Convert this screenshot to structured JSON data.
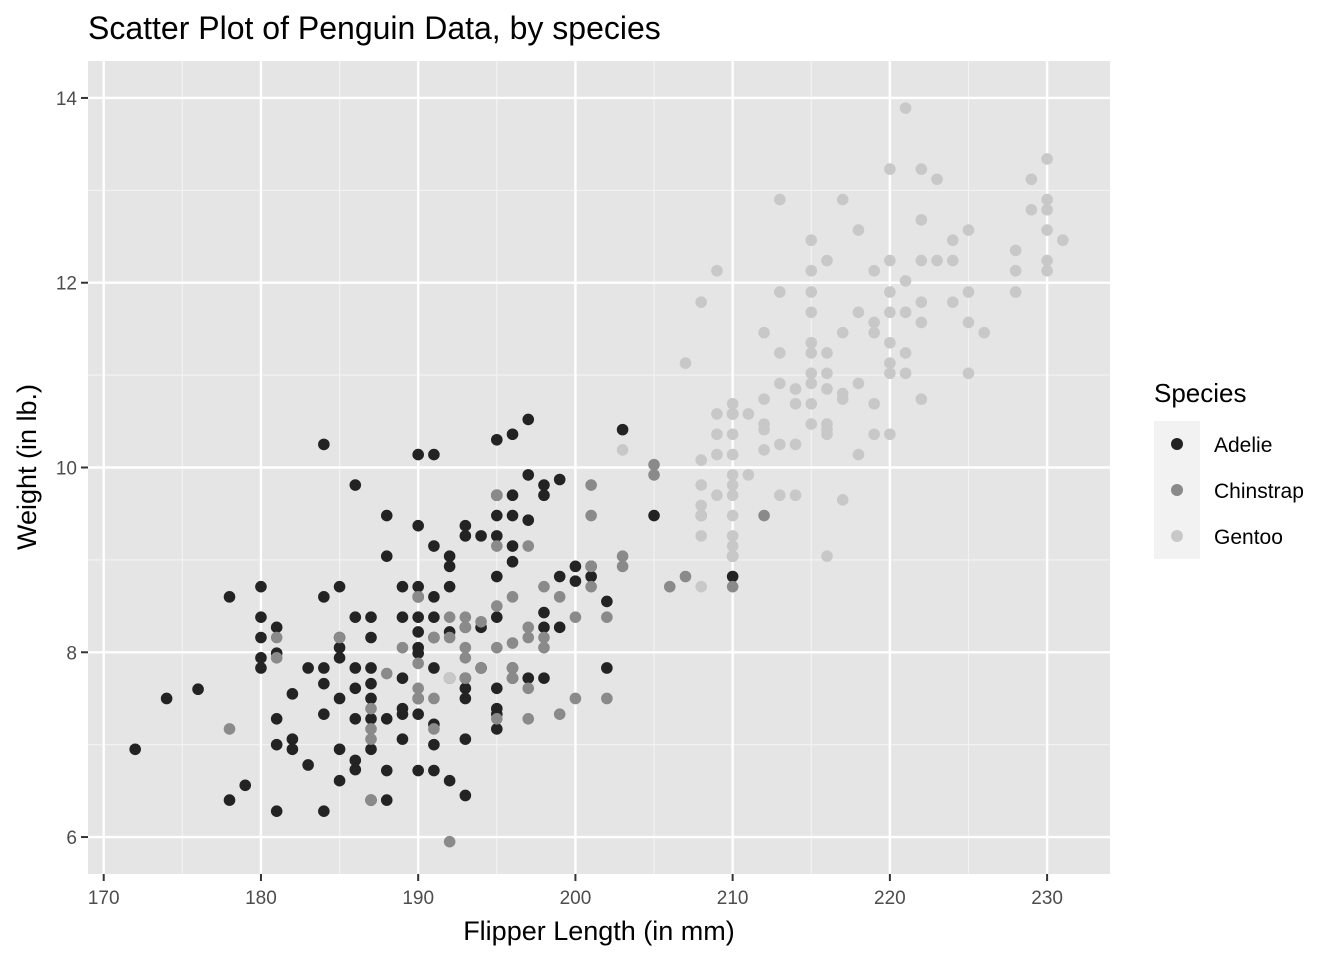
{
  "chart_data": {
    "type": "scatter",
    "title": "Scatter Plot of Penguin Data, by species",
    "xlabel": "Flipper Length (in mm)",
    "ylabel": "Weight (in lb.)",
    "xlim": [
      169,
      234
    ],
    "ylim": [
      5.6,
      14.4
    ],
    "x_ticks": [
      170,
      180,
      190,
      200,
      210,
      220,
      230
    ],
    "y_ticks": [
      6,
      8,
      10,
      12,
      14
    ],
    "grid": true,
    "background": "#e5e5e5",
    "legend": {
      "title": "Species",
      "position": "right"
    },
    "series": [
      {
        "name": "Adelie",
        "color": "#232323",
        "points": [
          [
            172,
            6.95
          ],
          [
            174,
            7.5
          ],
          [
            176,
            7.6
          ],
          [
            178,
            8.6
          ],
          [
            178,
            6.4
          ],
          [
            179,
            6.56
          ],
          [
            180,
            8.71
          ],
          [
            180,
            8.38
          ],
          [
            180,
            8.16
          ],
          [
            180,
            7.94
          ],
          [
            180,
            7.83
          ],
          [
            181,
            8.27
          ],
          [
            181,
            7.99
          ],
          [
            181,
            7.28
          ],
          [
            181,
            7.0
          ],
          [
            181,
            6.28
          ],
          [
            182,
            7.06
          ],
          [
            182,
            6.95
          ],
          [
            182,
            7.55
          ],
          [
            183,
            7.83
          ],
          [
            183,
            6.78
          ],
          [
            184,
            10.25
          ],
          [
            184,
            8.6
          ],
          [
            184,
            7.83
          ],
          [
            184,
            7.66
          ],
          [
            184,
            7.33
          ],
          [
            184,
            6.28
          ],
          [
            185,
            8.71
          ],
          [
            185,
            8.16
          ],
          [
            185,
            8.05
          ],
          [
            185,
            7.94
          ],
          [
            185,
            7.5
          ],
          [
            185,
            6.95
          ],
          [
            185,
            6.61
          ],
          [
            186,
            9.81
          ],
          [
            186,
            8.38
          ],
          [
            186,
            7.83
          ],
          [
            186,
            7.61
          ],
          [
            186,
            7.28
          ],
          [
            186,
            6.83
          ],
          [
            186,
            6.73
          ],
          [
            187,
            8.38
          ],
          [
            187,
            8.16
          ],
          [
            187,
            7.83
          ],
          [
            187,
            7.66
          ],
          [
            187,
            7.5
          ],
          [
            187,
            7.28
          ],
          [
            187,
            6.95
          ],
          [
            187,
            6.4
          ],
          [
            188,
            9.48
          ],
          [
            188,
            9.04
          ],
          [
            188,
            7.28
          ],
          [
            188,
            6.72
          ],
          [
            188,
            6.4
          ],
          [
            189,
            8.71
          ],
          [
            189,
            8.38
          ],
          [
            189,
            7.72
          ],
          [
            189,
            7.39
          ],
          [
            189,
            7.33
          ],
          [
            189,
            7.06
          ],
          [
            190,
            10.14
          ],
          [
            190,
            9.37
          ],
          [
            190,
            8.71
          ],
          [
            190,
            8.6
          ],
          [
            190,
            8.38
          ],
          [
            190,
            8.22
          ],
          [
            190,
            8.05
          ],
          [
            190,
            7.99
          ],
          [
            190,
            7.5
          ],
          [
            190,
            7.33
          ],
          [
            190,
            6.72
          ],
          [
            191,
            10.14
          ],
          [
            191,
            9.15
          ],
          [
            191,
            8.6
          ],
          [
            191,
            8.38
          ],
          [
            191,
            8.16
          ],
          [
            191,
            7.83
          ],
          [
            191,
            7.22
          ],
          [
            191,
            7.0
          ],
          [
            191,
            6.72
          ],
          [
            192,
            9.04
          ],
          [
            192,
            8.93
          ],
          [
            192,
            8.71
          ],
          [
            192,
            8.22
          ],
          [
            192,
            7.72
          ],
          [
            192,
            6.61
          ],
          [
            193,
            9.37
          ],
          [
            193,
            9.26
          ],
          [
            193,
            8.27
          ],
          [
            193,
            7.72
          ],
          [
            193,
            7.61
          ],
          [
            193,
            7.5
          ],
          [
            193,
            7.06
          ],
          [
            193,
            6.45
          ],
          [
            194,
            9.26
          ],
          [
            194,
            8.27
          ],
          [
            194,
            7.83
          ],
          [
            195,
            10.3
          ],
          [
            195,
            9.7
          ],
          [
            195,
            9.48
          ],
          [
            195,
            9.26
          ],
          [
            195,
            8.82
          ],
          [
            195,
            8.38
          ],
          [
            195,
            7.61
          ],
          [
            195,
            7.39
          ],
          [
            195,
            7.33
          ],
          [
            195,
            7.17
          ],
          [
            196,
            10.36
          ],
          [
            196,
            9.7
          ],
          [
            196,
            9.48
          ],
          [
            196,
            9.15
          ],
          [
            196,
            8.98
          ],
          [
            196,
            7.83
          ],
          [
            196,
            7.72
          ],
          [
            197,
            10.52
          ],
          [
            197,
            9.92
          ],
          [
            197,
            9.43
          ],
          [
            197,
            7.72
          ],
          [
            198,
            9.81
          ],
          [
            198,
            9.7
          ],
          [
            198,
            8.43
          ],
          [
            198,
            8.27
          ],
          [
            198,
            7.72
          ],
          [
            199,
            9.87
          ],
          [
            199,
            8.82
          ],
          [
            199,
            8.27
          ],
          [
            200,
            8.93
          ],
          [
            200,
            8.77
          ],
          [
            201,
            8.82
          ],
          [
            201,
            8.93
          ],
          [
            202,
            8.55
          ],
          [
            202,
            7.83
          ],
          [
            203,
            10.41
          ],
          [
            205,
            9.48
          ],
          [
            210,
            8.82
          ]
        ]
      },
      {
        "name": "Chinstrap",
        "color": "#8a8a8a",
        "points": [
          [
            178,
            7.17
          ],
          [
            181,
            8.16
          ],
          [
            181,
            7.94
          ],
          [
            185,
            8.16
          ],
          [
            187,
            7.17
          ],
          [
            187,
            7.06
          ],
          [
            187,
            6.4
          ],
          [
            187,
            7.39
          ],
          [
            188,
            7.77
          ],
          [
            189,
            8.05
          ],
          [
            190,
            8.6
          ],
          [
            190,
            7.88
          ],
          [
            190,
            7.61
          ],
          [
            190,
            7.5
          ],
          [
            191,
            8.16
          ],
          [
            191,
            7.5
          ],
          [
            191,
            7.17
          ],
          [
            192,
            8.38
          ],
          [
            192,
            8.16
          ],
          [
            192,
            5.95
          ],
          [
            193,
            8.38
          ],
          [
            193,
            8.27
          ],
          [
            193,
            8.05
          ],
          [
            193,
            7.94
          ],
          [
            193,
            7.72
          ],
          [
            194,
            8.33
          ],
          [
            194,
            7.83
          ],
          [
            195,
            9.7
          ],
          [
            195,
            9.15
          ],
          [
            195,
            8.5
          ],
          [
            195,
            8.05
          ],
          [
            195,
            7.28
          ],
          [
            196,
            8.6
          ],
          [
            196,
            8.1
          ],
          [
            196,
            7.83
          ],
          [
            196,
            7.72
          ],
          [
            197,
            9.15
          ],
          [
            197,
            8.27
          ],
          [
            197,
            8.16
          ],
          [
            197,
            7.61
          ],
          [
            197,
            7.28
          ],
          [
            198,
            8.71
          ],
          [
            198,
            8.16
          ],
          [
            198,
            8.05
          ],
          [
            199,
            8.6
          ],
          [
            199,
            7.33
          ],
          [
            200,
            8.38
          ],
          [
            200,
            7.5
          ],
          [
            201,
            9.81
          ],
          [
            201,
            9.48
          ],
          [
            201,
            8.93
          ],
          [
            201,
            8.71
          ],
          [
            202,
            8.38
          ],
          [
            202,
            7.5
          ],
          [
            203,
            9.04
          ],
          [
            203,
            8.93
          ],
          [
            205,
            10.03
          ],
          [
            205,
            9.92
          ],
          [
            206,
            8.71
          ],
          [
            207,
            8.82
          ],
          [
            208,
            9.48
          ],
          [
            210,
            10.58
          ],
          [
            210,
            9.04
          ],
          [
            210,
            8.71
          ],
          [
            212,
            9.48
          ]
        ]
      },
      {
        "name": "Gentoo",
        "color": "#c8c8c8",
        "points": [
          [
            192,
            7.72
          ],
          [
            203,
            10.19
          ],
          [
            207,
            11.13
          ],
          [
            208,
            11.79
          ],
          [
            208,
            10.08
          ],
          [
            208,
            9.81
          ],
          [
            208,
            9.59
          ],
          [
            208,
            9.48
          ],
          [
            208,
            9.26
          ],
          [
            208,
            8.71
          ],
          [
            209,
            12.13
          ],
          [
            209,
            10.58
          ],
          [
            209,
            10.36
          ],
          [
            209,
            10.14
          ],
          [
            209,
            9.7
          ],
          [
            210,
            10.69
          ],
          [
            210,
            10.58
          ],
          [
            210,
            10.36
          ],
          [
            210,
            10.14
          ],
          [
            210,
            9.92
          ],
          [
            210,
            9.81
          ],
          [
            210,
            9.7
          ],
          [
            210,
            9.48
          ],
          [
            210,
            9.26
          ],
          [
            210,
            9.15
          ],
          [
            210,
            9.04
          ],
          [
            211,
            10.58
          ],
          [
            211,
            9.92
          ],
          [
            212,
            11.46
          ],
          [
            212,
            10.74
          ],
          [
            212,
            10.47
          ],
          [
            212,
            10.41
          ],
          [
            212,
            10.19
          ],
          [
            213,
            12.9
          ],
          [
            213,
            11.9
          ],
          [
            213,
            11.24
          ],
          [
            213,
            10.91
          ],
          [
            213,
            10.25
          ],
          [
            213,
            9.7
          ],
          [
            214,
            10.85
          ],
          [
            214,
            10.69
          ],
          [
            214,
            10.25
          ],
          [
            214,
            9.7
          ],
          [
            215,
            12.46
          ],
          [
            215,
            12.13
          ],
          [
            215,
            11.9
          ],
          [
            215,
            11.68
          ],
          [
            215,
            11.35
          ],
          [
            215,
            11.24
          ],
          [
            215,
            11.02
          ],
          [
            215,
            10.91
          ],
          [
            215,
            10.69
          ],
          [
            215,
            10.47
          ],
          [
            216,
            12.24
          ],
          [
            216,
            11.24
          ],
          [
            216,
            11.02
          ],
          [
            216,
            10.85
          ],
          [
            216,
            10.47
          ],
          [
            216,
            10.41
          ],
          [
            216,
            10.36
          ],
          [
            216,
            9.04
          ],
          [
            217,
            12.9
          ],
          [
            217,
            11.46
          ],
          [
            217,
            10.8
          ],
          [
            217,
            10.74
          ],
          [
            217,
            9.65
          ],
          [
            218,
            12.57
          ],
          [
            218,
            11.68
          ],
          [
            218,
            10.91
          ],
          [
            218,
            10.14
          ],
          [
            219,
            12.13
          ],
          [
            219,
            11.57
          ],
          [
            219,
            11.46
          ],
          [
            219,
            10.69
          ],
          [
            219,
            10.36
          ],
          [
            220,
            13.23
          ],
          [
            220,
            12.24
          ],
          [
            220,
            11.9
          ],
          [
            220,
            11.68
          ],
          [
            220,
            11.35
          ],
          [
            220,
            11.13
          ],
          [
            220,
            11.02
          ],
          [
            220,
            10.36
          ],
          [
            221,
            13.89
          ],
          [
            221,
            12.02
          ],
          [
            221,
            11.68
          ],
          [
            221,
            11.24
          ],
          [
            221,
            11.02
          ],
          [
            222,
            13.23
          ],
          [
            222,
            12.68
          ],
          [
            222,
            12.24
          ],
          [
            222,
            11.79
          ],
          [
            222,
            11.57
          ],
          [
            222,
            10.74
          ],
          [
            223,
            13.12
          ],
          [
            223,
            12.24
          ],
          [
            224,
            12.46
          ],
          [
            224,
            12.24
          ],
          [
            224,
            11.79
          ],
          [
            225,
            12.57
          ],
          [
            225,
            11.9
          ],
          [
            225,
            11.57
          ],
          [
            225,
            11.02
          ],
          [
            226,
            11.46
          ],
          [
            228,
            12.35
          ],
          [
            228,
            12.13
          ],
          [
            228,
            11.9
          ],
          [
            229,
            13.12
          ],
          [
            229,
            12.79
          ],
          [
            230,
            13.34
          ],
          [
            230,
            12.9
          ],
          [
            230,
            12.79
          ],
          [
            230,
            12.57
          ],
          [
            230,
            12.24
          ],
          [
            230,
            12.13
          ],
          [
            231,
            12.46
          ]
        ]
      }
    ]
  }
}
